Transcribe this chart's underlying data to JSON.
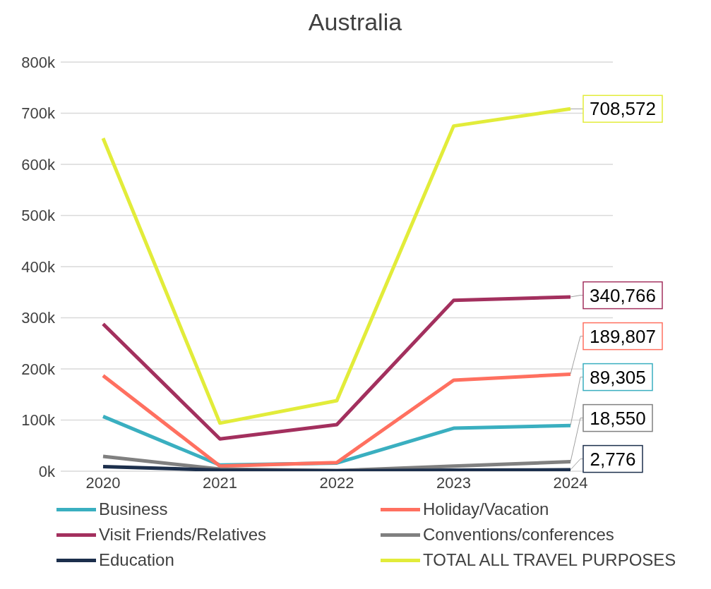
{
  "chart_data": {
    "type": "line",
    "title": "Australia",
    "categories": [
      "2020",
      "2021",
      "2022",
      "2023",
      "2024"
    ],
    "series": [
      {
        "name": "Business",
        "color": "#3aafc0",
        "values": [
          107000,
          12000,
          16000,
          84000,
          89305
        ],
        "value_labels": [
          null,
          null,
          null,
          null,
          "89,305"
        ]
      },
      {
        "name": "Holiday/Vacation",
        "color": "#ff7060",
        "values": [
          187000,
          10000,
          17000,
          178000,
          189807
        ],
        "value_labels": [
          null,
          null,
          null,
          null,
          "189,807"
        ]
      },
      {
        "name": "Visit Friends/Relatives",
        "color": "#a3305e",
        "values": [
          288000,
          63000,
          91000,
          334000,
          340766
        ],
        "value_labels": [
          null,
          null,
          null,
          null,
          "340,766"
        ]
      },
      {
        "name": "Conventions/conferences",
        "color": "#808080",
        "values": [
          29000,
          4000,
          1000,
          10000,
          18550
        ],
        "value_labels": [
          null,
          null,
          null,
          null,
          "18,550"
        ]
      },
      {
        "name": "Education",
        "color": "#1c2f4c",
        "values": [
          9000,
          2000,
          1000,
          2000,
          2776
        ],
        "value_labels": [
          null,
          null,
          null,
          null,
          "2,776"
        ]
      },
      {
        "name": "TOTAL ALL TRAVEL PURPOSES",
        "color": "#e2ec3a",
        "values": [
          651000,
          94000,
          138000,
          675000,
          708572
        ],
        "value_labels": [
          null,
          null,
          null,
          null,
          "708,572"
        ]
      }
    ],
    "ylim": [
      0,
      800000
    ],
    "yticks": [
      {
        "value": 0,
        "label": "0k"
      },
      {
        "value": 100000,
        "label": "100k"
      },
      {
        "value": 200000,
        "label": "200k"
      },
      {
        "value": 300000,
        "label": "300k"
      },
      {
        "value": 400000,
        "label": "400k"
      },
      {
        "value": 500000,
        "label": "500k"
      },
      {
        "value": 600000,
        "label": "600k"
      },
      {
        "value": 700000,
        "label": "700k"
      },
      {
        "value": 800000,
        "label": "800k"
      }
    ],
    "grid": "y",
    "legend": "bottom",
    "marker": "none",
    "line_style": "solid"
  }
}
